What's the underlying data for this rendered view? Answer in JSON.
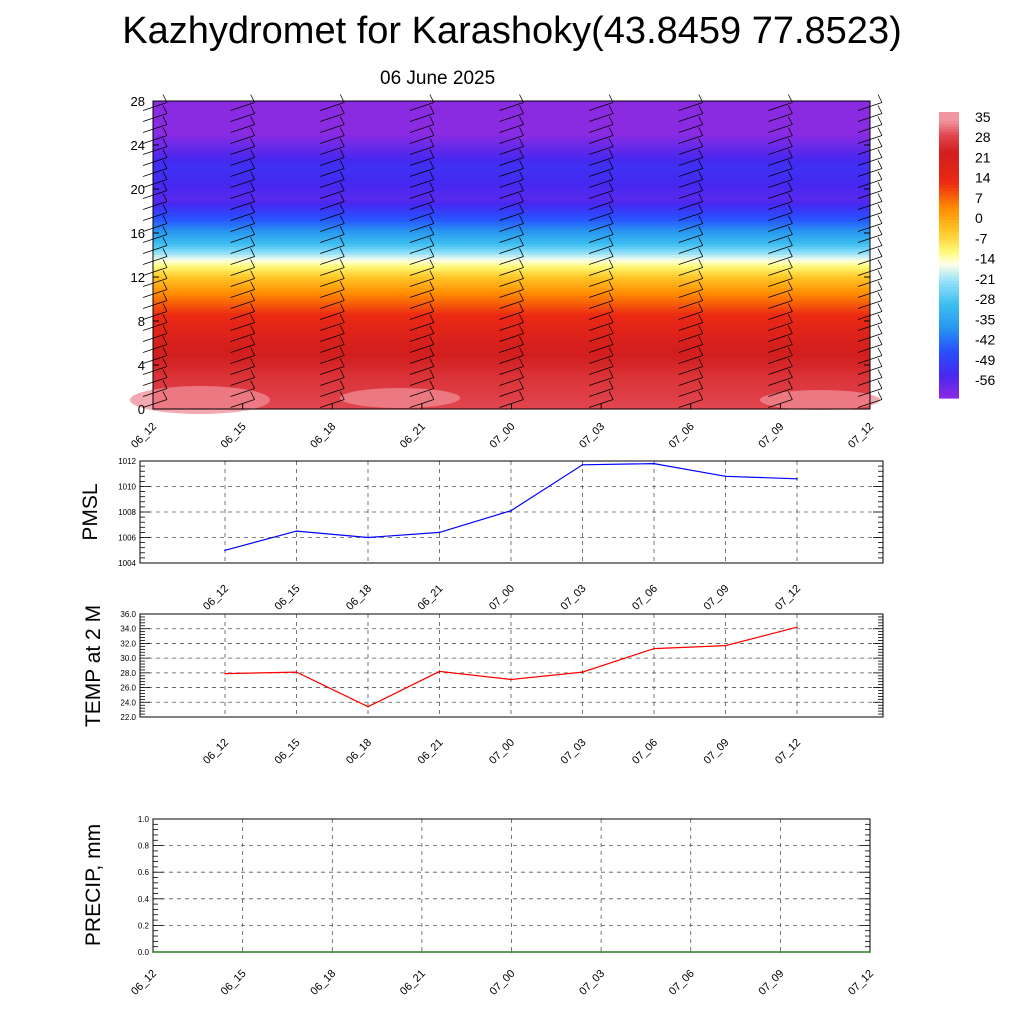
{
  "title": "Kazhydromet for Karashoky(43.8459 77.8523)",
  "subtitle": "06 June 2025",
  "chart_data": [
    {
      "type": "heatmap",
      "name": "upper-air temperature cross-section",
      "x_ticks": [
        "06_12",
        "06_15",
        "06_18",
        "06_21",
        "07_00",
        "07_03",
        "07_06",
        "07_09",
        "07_12"
      ],
      "y_ticks": [
        "0",
        "4",
        "8",
        "12",
        "16",
        "20",
        "24",
        "28"
      ],
      "ylim": [
        0,
        28
      ],
      "colorbar_labels": [
        "35",
        "28",
        "21",
        "14",
        "7",
        "0",
        "-7",
        "-14",
        "-21",
        "-28",
        "-35",
        "-42",
        "-49",
        "-56"
      ],
      "colorbar_range": [
        -60,
        38
      ],
      "profile": [
        {
          "level": 0,
          "value": 30
        },
        {
          "level": 3,
          "value": 27
        },
        {
          "level": 6,
          "value": 22
        },
        {
          "level": 8.5,
          "value": 14
        },
        {
          "level": 10.5,
          "value": 5
        },
        {
          "level": 12,
          "value": -3
        },
        {
          "level": 13.5,
          "value": -14
        },
        {
          "level": 15,
          "value": -28
        },
        {
          "level": 17,
          "value": -42
        },
        {
          "level": 19,
          "value": -54
        },
        {
          "level": 22,
          "value": -50
        },
        {
          "level": 25,
          "value": -60
        },
        {
          "level": 28,
          "value": -60
        }
      ],
      "wind_barbs": true
    },
    {
      "type": "line",
      "ylabel": "PMSL",
      "x": [
        "06_12",
        "06_15",
        "06_18",
        "06_21",
        "07_00",
        "07_03",
        "07_06",
        "07_09",
        "07_12"
      ],
      "values": [
        1005.0,
        1006.5,
        1006.0,
        1006.4,
        1008.1,
        1011.7,
        1011.8,
        1010.8,
        1010.6
      ],
      "ylim": [
        1004,
        1012
      ],
      "y_ticks": [
        "1004",
        "1006",
        "1008",
        "1010",
        "1012"
      ],
      "color": "#0000ff",
      "grid": true
    },
    {
      "type": "line",
      "ylabel": "TEMP at 2 M",
      "x": [
        "06_12",
        "06_15",
        "06_18",
        "06_21",
        "07_00",
        "07_03",
        "07_06",
        "07_09",
        "07_12"
      ],
      "values": [
        27.9,
        28.1,
        23.4,
        28.2,
        27.1,
        28.1,
        31.3,
        31.7,
        34.2
      ],
      "ylim": [
        22,
        36
      ],
      "y_ticks": [
        "22.0",
        "24.0",
        "26.0",
        "28.0",
        "30.0",
        "32.0",
        "34.0",
        "36.0"
      ],
      "color": "#ff0000",
      "grid": true
    },
    {
      "type": "line",
      "ylabel": "PRECIP, mm",
      "x": [
        "06_12",
        "06_15",
        "06_18",
        "06_21",
        "07_00",
        "07_03",
        "07_06",
        "07_09",
        "07_12"
      ],
      "values": [
        0,
        0,
        0,
        0,
        0,
        0,
        0,
        0,
        0
      ],
      "ylim": [
        0,
        1
      ],
      "y_ticks": [
        "0.0",
        "0.2",
        "0.4",
        "0.6",
        "0.8",
        "1.0"
      ],
      "color": "#006400",
      "grid": true
    }
  ]
}
